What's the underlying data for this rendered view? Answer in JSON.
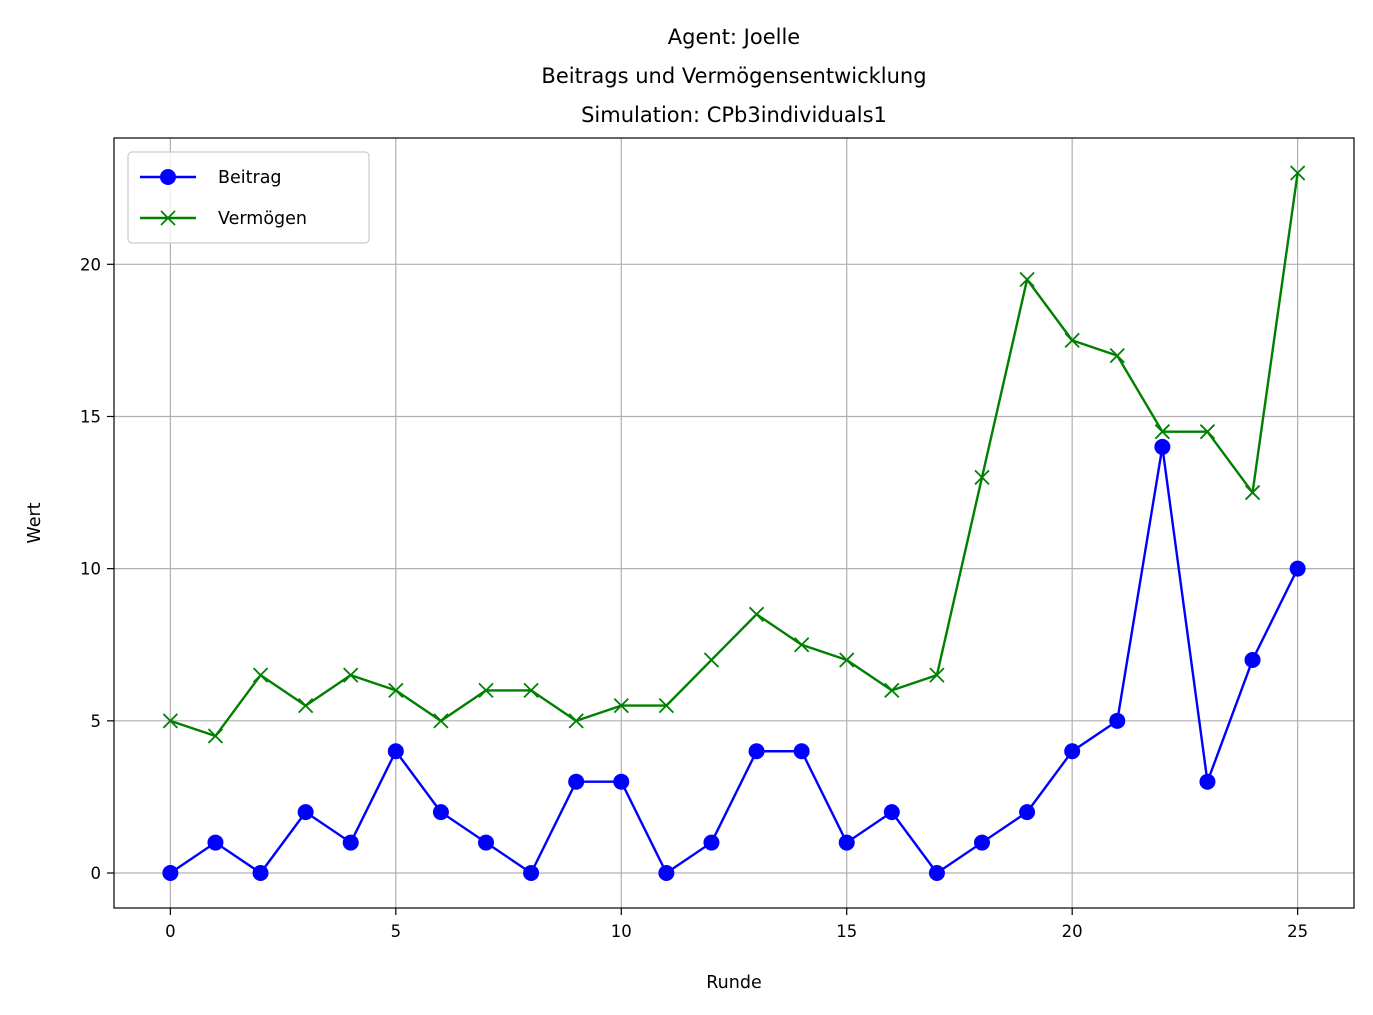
{
  "chart_data": {
    "type": "line",
    "title_lines": [
      "Agent: Joelle",
      "Beitrags und Vermögensentwicklung",
      "Simulation: CPb3individuals1"
    ],
    "xlabel": "Runde",
    "ylabel": "Wert",
    "xlim": [
      -1.25,
      26.25
    ],
    "ylim": [
      -1.15,
      24.15
    ],
    "xticks": [
      0,
      5,
      10,
      15,
      20,
      25
    ],
    "yticks": [
      0,
      5,
      10,
      15,
      20
    ],
    "grid": true,
    "legend_position": "upper-left",
    "x": [
      0,
      1,
      2,
      3,
      4,
      5,
      6,
      7,
      8,
      9,
      10,
      11,
      12,
      13,
      14,
      15,
      16,
      17,
      18,
      19,
      20,
      21,
      22,
      23,
      24,
      25
    ],
    "series": [
      {
        "name": "Beitrag",
        "color": "#0000ff",
        "marker": "circle",
        "values": [
          0,
          1,
          0,
          2,
          1,
          4,
          2,
          1,
          0,
          3,
          3,
          0,
          1,
          4,
          4,
          1,
          2,
          0,
          1,
          2,
          4,
          5,
          14,
          3,
          7,
          10
        ]
      },
      {
        "name": "Vermögen",
        "color": "#008000",
        "marker": "x",
        "values": [
          5,
          4.5,
          6.5,
          5.5,
          6.5,
          6,
          5,
          6,
          6,
          5,
          5.5,
          5.5,
          7,
          8.5,
          7.5,
          7,
          6,
          6.5,
          13,
          19.5,
          17.5,
          17,
          14.5,
          14.5,
          12.5,
          23
        ]
      }
    ]
  }
}
